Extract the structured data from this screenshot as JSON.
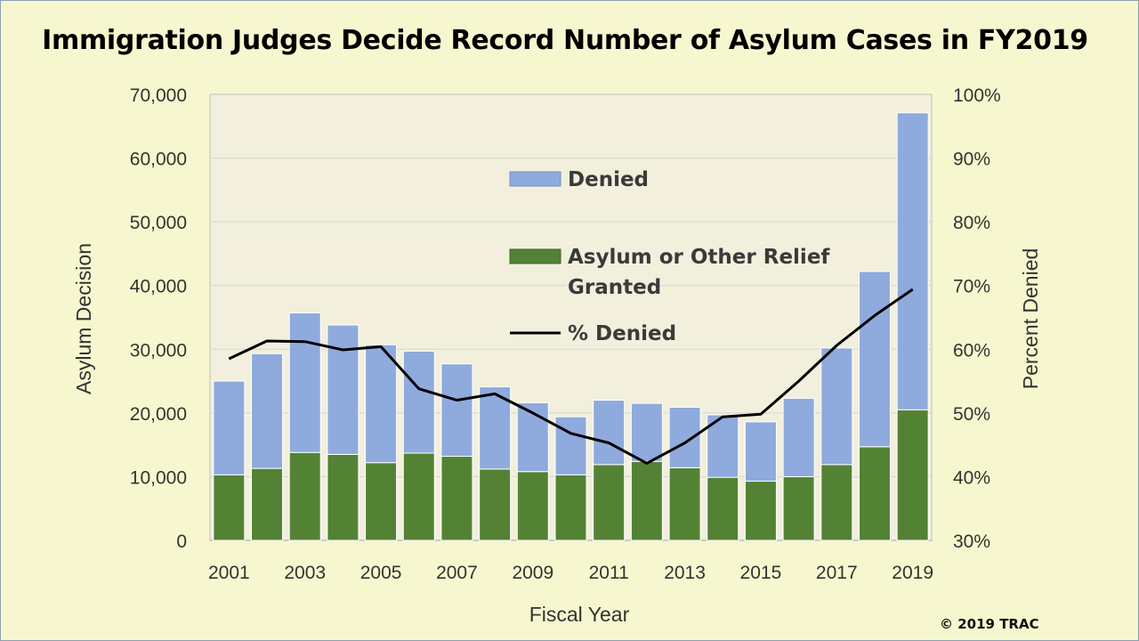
{
  "chart_data": {
    "type": "bar",
    "title": "Immigration Judges Decide Record Number of Asylum Cases in FY2019",
    "xlabel": "Fiscal Year",
    "ylabel": "Asylum Decision",
    "y2label": "Percent Denied",
    "ylim": [
      0,
      70000
    ],
    "y2lim": [
      30,
      100
    ],
    "yticks": [
      "0",
      "10,000",
      "20,000",
      "30,000",
      "40,000",
      "50,000",
      "60,000",
      "70,000"
    ],
    "y2ticks": [
      "30%",
      "40%",
      "50%",
      "60%",
      "70%",
      "80%",
      "90%",
      "100%"
    ],
    "categories": [
      "2001",
      "2002",
      "2003",
      "2004",
      "2005",
      "2006",
      "2007",
      "2008",
      "2009",
      "2010",
      "2011",
      "2012",
      "2013",
      "2014",
      "2015",
      "2016",
      "2017",
      "2018",
      "2019"
    ],
    "xtick_labels": [
      "2001",
      "",
      "2003",
      "",
      "2005",
      "",
      "2007",
      "",
      "2009",
      "",
      "2011",
      "",
      "2013",
      "",
      "2015",
      "",
      "2017",
      "",
      "2019"
    ],
    "stacked": true,
    "series": [
      {
        "name": "Asylum or Other Relief Granted",
        "kind": "bar",
        "color": "#548235",
        "values": [
          10300,
          11300,
          13800,
          13500,
          12200,
          13700,
          13200,
          11200,
          10800,
          10300,
          11900,
          12400,
          11400,
          9900,
          9300,
          10000,
          11900,
          14700,
          20500
        ]
      },
      {
        "name": "Denied",
        "kind": "bar",
        "color": "#8faadc",
        "values": [
          14700,
          18000,
          21900,
          20300,
          18500,
          16000,
          14500,
          12900,
          10800,
          9100,
          10100,
          9100,
          9500,
          9800,
          9300,
          12300,
          18300,
          27500,
          46600
        ]
      },
      {
        "name": "% Denied",
        "kind": "line",
        "axis": "right",
        "color": "#000000",
        "values": [
          58.5,
          61.3,
          61.2,
          59.9,
          60.4,
          53.8,
          52.0,
          53.0,
          50.0,
          46.8,
          45.3,
          42.1,
          45.3,
          49.4,
          49.8,
          55.0,
          60.6,
          65.3,
          69.4
        ]
      }
    ],
    "grid": true,
    "legend_placement": "center-left inside plot",
    "plot_background": "#f2f0dc",
    "page_background": "#f7f7cf"
  },
  "legend": {
    "denied": "Denied",
    "granted_line1": "Asylum or Other Relief",
    "granted_line2": "Granted",
    "pct": "% Denied"
  },
  "copyright": "© 2019 TRAC"
}
